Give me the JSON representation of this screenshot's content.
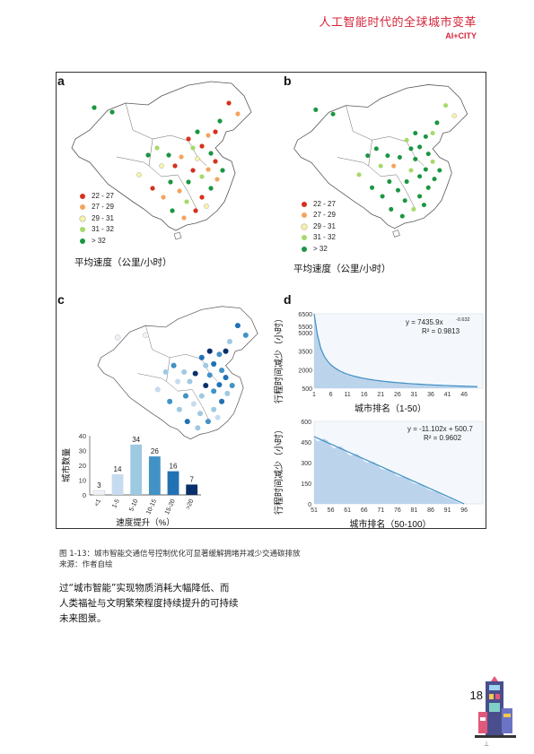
{
  "header": {
    "title": "人工智能时代的全球城市变革",
    "subtitle": "AI+CITY"
  },
  "panels": {
    "a": {
      "letter": "a",
      "caption": "平均速度（公里/小时）"
    },
    "b": {
      "letter": "b",
      "caption": "平均速度（公里/小时）"
    },
    "c": {
      "letter": "c"
    },
    "d": {
      "letter": "d"
    }
  },
  "legend_speed": [
    {
      "label": "22 - 27",
      "color": "#d7301f"
    },
    {
      "label": "27 - 29",
      "color": "#f4a460"
    },
    {
      "label": "29 - 31",
      "color": "#f7f4a8"
    },
    {
      "label": "31 - 32",
      "color": "#a6d96a"
    },
    {
      "label": "> 32",
      "color": "#1a9641"
    }
  ],
  "chart_data": [
    {
      "type": "bar",
      "categories": [
        "<1",
        "1-5",
        "5-10",
        "10-15",
        "15-20",
        ">20"
      ],
      "values": [
        3,
        14,
        34,
        26,
        16,
        7
      ],
      "colors": [
        "#eef3fa",
        "#c6dbef",
        "#9ecae1",
        "#4292c6",
        "#2171b5",
        "#08306b"
      ],
      "xlabel": "速度提升（%）",
      "ylabel": "城市数量",
      "ylim": [
        0,
        40
      ],
      "yticks": [
        0,
        10,
        20,
        30,
        40
      ]
    },
    {
      "type": "area",
      "x_ticks": [
        "1",
        "6",
        "11",
        "16",
        "21",
        "26",
        "31",
        "36",
        "41",
        "46"
      ],
      "y_ticks": [
        "500",
        "2000",
        "2500",
        "3000",
        "3500",
        "4000",
        "4500",
        "5000",
        "5500",
        "6000",
        "6500"
      ],
      "xlabel": "城市排名（1-50）",
      "ylabel": "行程时间减少（小时）",
      "trend_equation": "y = 7435.9x",
      "trend_exponent": "-0.632",
      "r_squared": "R² = 0.9813",
      "x": [
        1,
        50
      ],
      "ylim": [
        500,
        6500
      ]
    },
    {
      "type": "area",
      "x_ticks": [
        "51",
        "56",
        "61",
        "66",
        "71",
        "76",
        "81",
        "86",
        "91",
        "96"
      ],
      "y_ticks": [
        "0",
        "150",
        "300",
        "450",
        "600"
      ],
      "xlabel": "城市排名（50-100）",
      "ylabel": "行程时间减少（小时）",
      "trend_equation": "y = -11.102x + 500.7",
      "r_squared": "R² = 0.9602",
      "x": [
        51,
        100
      ],
      "ylim": [
        0,
        600
      ]
    }
  ],
  "figure_caption": {
    "line1": "图 1-13：城市智能交通信号控制优化可显著缓解拥堵并减少交通碳排放",
    "line2": "来源：作者自绘"
  },
  "body_text": {
    "line1": "过“城市智能”实现物质消耗大幅降低、而",
    "line2": "人类福祉与文明繁荣程度持续提升的可持续",
    "line3": "未来图景。"
  },
  "page_number": "18"
}
